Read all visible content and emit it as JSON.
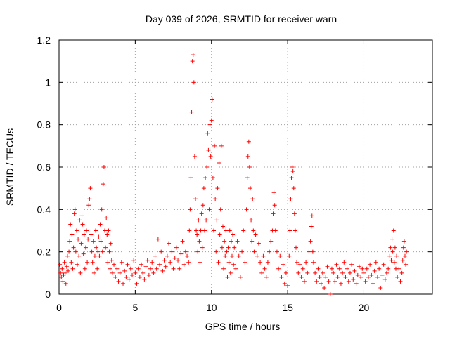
{
  "chart_data": {
    "type": "scatter",
    "title": "Day 039 of 2026, SRMTID for receiver warn",
    "xlabel": "GPS time / hours",
    "ylabel": "SRMTID / TECUs",
    "xlim": [
      0,
      24.5
    ],
    "ylim": [
      0,
      1.2
    ],
    "xticks": [
      0,
      5,
      10,
      15,
      20
    ],
    "yticks": [
      0,
      0.2,
      0.4,
      0.6,
      0.8,
      1.0,
      1.2
    ],
    "xtick_labels": [
      "0",
      "5",
      "10",
      "15",
      "20"
    ],
    "ytick_labels": [
      "0",
      "0.2",
      "0.4",
      "0.6",
      "0.8",
      "1",
      "1.2"
    ],
    "grid": true,
    "marker": "+",
    "color": "#ff0000",
    "series": [
      {
        "name": "SRMTID",
        "points": [
          [
            0.05,
            0.14
          ],
          [
            0.1,
            0.1
          ],
          [
            0.15,
            0.08
          ],
          [
            0.2,
            0.12
          ],
          [
            0.25,
            0.06
          ],
          [
            0.3,
            0.09
          ],
          [
            0.35,
            0.15
          ],
          [
            0.4,
            0.1
          ],
          [
            0.45,
            0.05
          ],
          [
            0.5,
            0.13
          ],
          [
            0.55,
            0.18
          ],
          [
            0.6,
            0.11
          ],
          [
            0.65,
            0.2
          ],
          [
            0.7,
            0.25
          ],
          [
            0.75,
            0.33
          ],
          [
            0.8,
            0.15
          ],
          [
            0.85,
            0.28
          ],
          [
            0.9,
            0.12
          ],
          [
            0.95,
            0.22
          ],
          [
            1.0,
            0.38
          ],
          [
            1.05,
            0.4
          ],
          [
            1.1,
            0.2
          ],
          [
            1.15,
            0.3
          ],
          [
            1.2,
            0.14
          ],
          [
            1.25,
            0.26
          ],
          [
            1.3,
            0.18
          ],
          [
            1.35,
            0.35
          ],
          [
            1.4,
            0.1
          ],
          [
            1.45,
            0.24
          ],
          [
            1.5,
            0.37
          ],
          [
            1.55,
            0.33
          ],
          [
            1.6,
            0.19
          ],
          [
            1.65,
            0.28
          ],
          [
            1.7,
            0.12
          ],
          [
            1.75,
            0.22
          ],
          [
            1.8,
            0.3
          ],
          [
            1.85,
            0.15
          ],
          [
            1.9,
            0.26
          ],
          [
            1.95,
            0.42
          ],
          [
            2.0,
            0.45
          ],
          [
            2.05,
            0.5
          ],
          [
            2.1,
            0.28
          ],
          [
            2.15,
            0.2
          ],
          [
            2.2,
            0.15
          ],
          [
            2.25,
            0.25
          ],
          [
            2.3,
            0.1
          ],
          [
            2.35,
            0.18
          ],
          [
            2.4,
            0.3
          ],
          [
            2.45,
            0.22
          ],
          [
            2.5,
            0.12
          ],
          [
            2.55,
            0.2
          ],
          [
            2.6,
            0.27
          ],
          [
            2.65,
            0.18
          ],
          [
            2.7,
            0.33
          ],
          [
            2.75,
            0.25
          ],
          [
            2.8,
            0.4
          ],
          [
            2.85,
            0.2
          ],
          [
            2.9,
            0.52
          ],
          [
            2.95,
            0.6
          ],
          [
            3.0,
            0.3
          ],
          [
            3.05,
            0.22
          ],
          [
            3.1,
            0.36
          ],
          [
            3.15,
            0.28
          ],
          [
            3.2,
            0.15
          ],
          [
            3.25,
            0.3
          ],
          [
            3.3,
            0.2
          ],
          [
            3.35,
            0.12
          ],
          [
            3.4,
            0.24
          ],
          [
            3.45,
            0.16
          ],
          [
            3.5,
            0.1
          ],
          [
            3.6,
            0.14
          ],
          [
            3.7,
            0.08
          ],
          [
            3.8,
            0.12
          ],
          [
            3.9,
            0.06
          ],
          [
            4.0,
            0.1
          ],
          [
            4.1,
            0.15
          ],
          [
            4.2,
            0.05
          ],
          [
            4.3,
            0.11
          ],
          [
            4.4,
            0.08
          ],
          [
            4.5,
            0.14
          ],
          [
            4.6,
            0.07
          ],
          [
            4.7,
            0.12
          ],
          [
            4.8,
            0.09
          ],
          [
            4.9,
            0.16
          ],
          [
            5.0,
            0.1
          ],
          [
            5.1,
            0.05
          ],
          [
            5.2,
            0.12
          ],
          [
            5.3,
            0.08
          ],
          [
            5.4,
            0.14
          ],
          [
            5.5,
            0.1
          ],
          [
            5.6,
            0.07
          ],
          [
            5.7,
            0.13
          ],
          [
            5.8,
            0.16
          ],
          [
            5.9,
            0.09
          ],
          [
            6.0,
            0.12
          ],
          [
            6.1,
            0.15
          ],
          [
            6.2,
            0.1
          ],
          [
            6.3,
            0.18
          ],
          [
            6.4,
            0.12
          ],
          [
            6.5,
            0.26
          ],
          [
            6.6,
            0.14
          ],
          [
            6.7,
            0.2
          ],
          [
            6.8,
            0.11
          ],
          [
            6.9,
            0.16
          ],
          [
            7.0,
            0.13
          ],
          [
            7.1,
            0.18
          ],
          [
            7.2,
            0.24
          ],
          [
            7.3,
            0.15
          ],
          [
            7.4,
            0.2
          ],
          [
            7.5,
            0.12
          ],
          [
            7.6,
            0.17
          ],
          [
            7.7,
            0.22
          ],
          [
            7.8,
            0.16
          ],
          [
            7.9,
            0.12
          ],
          [
            8.0,
            0.19
          ],
          [
            8.1,
            0.25
          ],
          [
            8.2,
            0.14
          ],
          [
            8.3,
            0.2
          ],
          [
            8.4,
            0.18
          ],
          [
            8.5,
            0.15
          ],
          [
            8.55,
            0.3
          ],
          [
            8.6,
            0.4
          ],
          [
            8.65,
            0.55
          ],
          [
            8.7,
            0.86
          ],
          [
            8.75,
            1.1
          ],
          [
            8.8,
            1.13
          ],
          [
            8.85,
            1.0
          ],
          [
            8.9,
            0.65
          ],
          [
            8.95,
            0.45
          ],
          [
            9.0,
            0.3
          ],
          [
            9.05,
            0.28
          ],
          [
            9.1,
            0.2
          ],
          [
            9.15,
            0.35
          ],
          [
            9.2,
            0.25
          ],
          [
            9.25,
            0.15
          ],
          [
            9.3,
            0.3
          ],
          [
            9.35,
            0.38
          ],
          [
            9.4,
            0.22
          ],
          [
            9.45,
            0.42
          ],
          [
            9.5,
            0.5
          ],
          [
            9.55,
            0.3
          ],
          [
            9.6,
            0.55
          ],
          [
            9.65,
            0.35
          ],
          [
            9.7,
            0.6
          ],
          [
            9.75,
            0.76
          ],
          [
            9.8,
            0.68
          ],
          [
            9.85,
            0.4
          ],
          [
            9.9,
            0.8
          ],
          [
            9.95,
            0.65
          ],
          [
            10.0,
            0.82
          ],
          [
            10.05,
            0.92
          ],
          [
            10.1,
            0.55
          ],
          [
            10.15,
            0.3
          ],
          [
            10.2,
            0.7
          ],
          [
            10.25,
            0.45
          ],
          [
            10.3,
            0.2
          ],
          [
            10.35,
            0.35
          ],
          [
            10.4,
            0.5
          ],
          [
            10.45,
            0.15
          ],
          [
            10.5,
            0.62
          ],
          [
            10.55,
            0.28
          ],
          [
            10.6,
            0.4
          ],
          [
            10.65,
            0.7
          ],
          [
            10.7,
            0.22
          ],
          [
            10.75,
            0.32
          ],
          [
            10.8,
            0.12
          ],
          [
            10.85,
            0.25
          ],
          [
            10.9,
            0.18
          ],
          [
            10.95,
            0.3
          ],
          [
            11.0,
            0.2
          ],
          [
            11.05,
            0.08
          ],
          [
            11.1,
            0.22
          ],
          [
            11.15,
            0.15
          ],
          [
            11.2,
            0.3
          ],
          [
            11.25,
            0.1
          ],
          [
            11.3,
            0.25
          ],
          [
            11.35,
            0.18
          ],
          [
            11.4,
            0.28
          ],
          [
            11.45,
            0.14
          ],
          [
            11.5,
            0.22
          ],
          [
            11.6,
            0.12
          ],
          [
            11.7,
            0.25
          ],
          [
            11.8,
            0.18
          ],
          [
            11.9,
            0.08
          ],
          [
            12.0,
            0.2
          ],
          [
            12.1,
            0.3
          ],
          [
            12.2,
            0.15
          ],
          [
            12.3,
            0.4
          ],
          [
            12.35,
            0.55
          ],
          [
            12.4,
            0.65
          ],
          [
            12.45,
            0.72
          ],
          [
            12.5,
            0.6
          ],
          [
            12.55,
            0.5
          ],
          [
            12.6,
            0.35
          ],
          [
            12.65,
            0.25
          ],
          [
            12.7,
            0.45
          ],
          [
            12.75,
            0.3
          ],
          [
            12.8,
            0.2
          ],
          [
            12.9,
            0.28
          ],
          [
            13.0,
            0.18
          ],
          [
            13.1,
            0.24
          ],
          [
            13.2,
            0.15
          ],
          [
            13.3,
            0.1
          ],
          [
            13.4,
            0.18
          ],
          [
            13.5,
            0.12
          ],
          [
            13.6,
            0.08
          ],
          [
            13.7,
            0.15
          ],
          [
            13.8,
            0.2
          ],
          [
            13.9,
            0.25
          ],
          [
            14.0,
            0.3
          ],
          [
            14.05,
            0.38
          ],
          [
            14.1,
            0.48
          ],
          [
            14.15,
            0.42
          ],
          [
            14.2,
            0.3
          ],
          [
            14.3,
            0.2
          ],
          [
            14.4,
            0.12
          ],
          [
            14.5,
            0.18
          ],
          [
            14.6,
            0.08
          ],
          [
            14.7,
            0.14
          ],
          [
            14.8,
            0.05
          ],
          [
            14.9,
            0.1
          ],
          [
            15.0,
            0.04
          ],
          [
            15.1,
            0.18
          ],
          [
            15.15,
            0.3
          ],
          [
            15.2,
            0.45
          ],
          [
            15.25,
            0.55
          ],
          [
            15.3,
            0.6
          ],
          [
            15.35,
            0.58
          ],
          [
            15.4,
            0.5
          ],
          [
            15.45,
            0.38
          ],
          [
            15.5,
            0.3
          ],
          [
            15.55,
            0.22
          ],
          [
            15.6,
            0.15
          ],
          [
            15.7,
            0.1
          ],
          [
            15.8,
            0.14
          ],
          [
            15.9,
            0.08
          ],
          [
            16.0,
            0.12
          ],
          [
            16.1,
            0.06
          ],
          [
            16.2,
            0.15
          ],
          [
            16.3,
            0.1
          ],
          [
            16.4,
            0.2
          ],
          [
            16.5,
            0.25
          ],
          [
            16.55,
            0.32
          ],
          [
            16.6,
            0.37
          ],
          [
            16.65,
            0.2
          ],
          [
            16.7,
            0.15
          ],
          [
            16.8,
            0.1
          ],
          [
            16.9,
            0.06
          ],
          [
            17.0,
            0.12
          ],
          [
            17.1,
            0.08
          ],
          [
            17.2,
            0.05
          ],
          [
            17.3,
            0.1
          ],
          [
            17.4,
            0.03
          ],
          [
            17.5,
            0.08
          ],
          [
            17.6,
            0.13
          ],
          [
            17.7,
            0.06
          ],
          [
            17.8,
            0.0
          ],
          [
            17.9,
            0.12
          ],
          [
            18.0,
            0.1
          ],
          [
            18.1,
            0.06
          ],
          [
            18.2,
            0.14
          ],
          [
            18.3,
            0.08
          ],
          [
            18.4,
            0.12
          ],
          [
            18.5,
            0.05
          ],
          [
            18.6,
            0.1
          ],
          [
            18.7,
            0.15
          ],
          [
            18.8,
            0.08
          ],
          [
            18.9,
            0.12
          ],
          [
            19.0,
            0.06
          ],
          [
            19.1,
            0.1
          ],
          [
            19.2,
            0.14
          ],
          [
            19.3,
            0.07
          ],
          [
            19.4,
            0.11
          ],
          [
            19.5,
            0.05
          ],
          [
            19.6,
            0.09
          ],
          [
            19.7,
            0.13
          ],
          [
            19.8,
            0.08
          ],
          [
            19.9,
            0.12
          ],
          [
            20.0,
            0.1
          ],
          [
            20.1,
            0.06
          ],
          [
            20.2,
            0.12
          ],
          [
            20.3,
            0.08
          ],
          [
            20.4,
            0.14
          ],
          [
            20.5,
            0.09
          ],
          [
            20.6,
            0.05
          ],
          [
            20.7,
            0.11
          ],
          [
            20.8,
            0.15
          ],
          [
            20.9,
            0.08
          ],
          [
            21.0,
            0.12
          ],
          [
            21.1,
            0.03
          ],
          [
            21.2,
            0.09
          ],
          [
            21.3,
            0.14
          ],
          [
            21.4,
            0.07
          ],
          [
            21.5,
            0.1
          ],
          [
            21.6,
            0.12
          ],
          [
            21.7,
            0.18
          ],
          [
            21.75,
            0.22
          ],
          [
            21.8,
            0.16
          ],
          [
            21.85,
            0.26
          ],
          [
            21.9,
            0.2
          ],
          [
            21.95,
            0.3
          ],
          [
            22.0,
            0.15
          ],
          [
            22.05,
            0.22
          ],
          [
            22.1,
            0.12
          ],
          [
            22.15,
            0.18
          ],
          [
            22.2,
            0.08
          ],
          [
            22.3,
            0.12
          ],
          [
            22.4,
            0.06
          ],
          [
            22.5,
            0.1
          ],
          [
            22.55,
            0.16
          ],
          [
            22.6,
            0.22
          ],
          [
            22.65,
            0.25
          ],
          [
            22.7,
            0.18
          ],
          [
            22.75,
            0.14
          ],
          [
            22.8,
            0.2
          ]
        ]
      }
    ]
  }
}
